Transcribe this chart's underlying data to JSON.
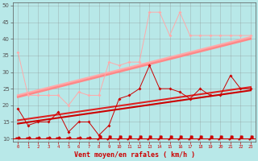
{
  "background_color": "#b8e8e8",
  "grid_color": "#888888",
  "xlabel": "Vent moyen/en rafales ( km/h )",
  "xlabel_color": "#cc0000",
  "x_ticks": [
    0,
    1,
    2,
    3,
    4,
    5,
    6,
    7,
    8,
    9,
    10,
    11,
    12,
    13,
    14,
    15,
    16,
    17,
    18,
    19,
    20,
    21,
    22,
    23
  ],
  "ylim": [
    9,
    51
  ],
  "yticks": [
    10,
    15,
    20,
    25,
    30,
    35,
    40,
    45,
    50
  ],
  "trend_upper1": [
    23.0,
    40.5
  ],
  "trend_upper2": [
    22.5,
    40.0
  ],
  "trend_lower1": [
    15.5,
    25.5
  ],
  "trend_lower2": [
    14.5,
    24.5
  ],
  "series_light_y": [
    36,
    23,
    23,
    23,
    23,
    20,
    24,
    23,
    23,
    33,
    32,
    33,
    33,
    48,
    48,
    41,
    48,
    41,
    41,
    41,
    41,
    41,
    41,
    41
  ],
  "series_dark_y": [
    19,
    14,
    15,
    15,
    18,
    12,
    15,
    15,
    11,
    14,
    22,
    23,
    25,
    32,
    25,
    25,
    24,
    22,
    25,
    23,
    23,
    29,
    25,
    25
  ],
  "color_light": "#ff9999",
  "color_mid": "#ffaaaa",
  "color_dark": "#cc0000",
  "color_darkred": "#cc0000",
  "arrow_dirs": [
    0,
    0,
    0,
    0,
    0,
    0,
    0,
    0,
    1,
    1,
    1,
    1,
    1,
    1,
    1,
    1,
    1,
    1,
    1,
    1,
    1,
    1,
    1,
    1
  ],
  "figsize": [
    3.2,
    2.0
  ],
  "dpi": 100
}
